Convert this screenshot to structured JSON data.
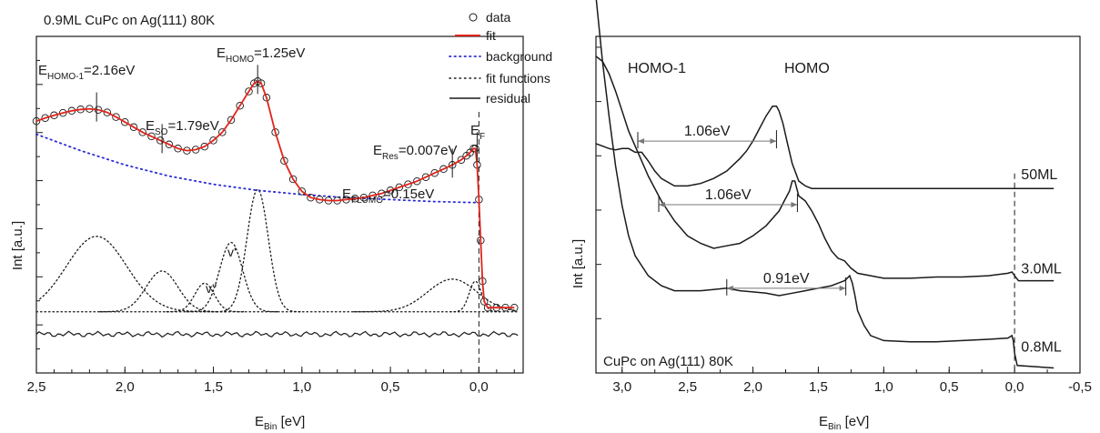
{
  "chart_data": [
    {
      "type": "line",
      "title": "0.9ML CuPc on Ag(111) 80K",
      "xlabel_main": "E",
      "xlabel_sub": "Bin",
      "xlabel_unit": " [eV]",
      "ylabel": "Int [a.u.]",
      "xlim": [
        2.5,
        -0.25
      ],
      "x_reversed": true,
      "x_ticks": [
        "2,5",
        "2,0",
        "1,5",
        "1,0",
        "0,5",
        "0,0"
      ],
      "x_tick_values": [
        2.5,
        2.0,
        1.5,
        1.0,
        0.5,
        0.0
      ],
      "legend_position": "top-right",
      "legend": [
        {
          "label": "data",
          "style": "circle",
          "color": "#1a1a1a"
        },
        {
          "label": "fit",
          "style": "solid",
          "color": "#e0241b"
        },
        {
          "label": "background",
          "style": "dot",
          "color": "#2b2bd6"
        },
        {
          "label": "fit functions",
          "style": "dot",
          "color": "#1a1a1a"
        },
        {
          "label": "residual",
          "style": "solid",
          "color": "#1a1a1a"
        }
      ],
      "annotations": [
        {
          "main": "E",
          "sub": "HOMO-1",
          "text": "=2.16eV",
          "x": 2.16
        },
        {
          "main": "E",
          "sub": "SO",
          "text": "=1.79eV",
          "x": 1.79
        },
        {
          "main": "E",
          "sub": "HOMO",
          "text": "=1.25eV",
          "x": 1.25
        },
        {
          "main": "E",
          "sub": "Res",
          "text": "=0.007eV",
          "x": 0.007
        },
        {
          "main": "E",
          "sub": "F",
          "text": "",
          "x": 0.0
        },
        {
          "main": "E",
          "sub": "FLUMO",
          "text": "=0.15eV",
          "x": 0.15
        }
      ],
      "peak_labels": [
        {
          "text": "v'",
          "x": 1.4
        },
        {
          "text": "v''",
          "x": 1.55
        }
      ],
      "series": [
        {
          "name": "fit",
          "x": [
            2.5,
            2.45,
            2.4,
            2.35,
            2.3,
            2.25,
            2.2,
            2.15,
            2.1,
            2.05,
            2.0,
            1.95,
            1.9,
            1.85,
            1.8,
            1.75,
            1.7,
            1.65,
            1.6,
            1.55,
            1.5,
            1.45,
            1.4,
            1.35,
            1.3,
            1.27,
            1.25,
            1.23,
            1.2,
            1.15,
            1.1,
            1.05,
            1.0,
            0.95,
            0.9,
            0.85,
            0.8,
            0.75,
            0.7,
            0.65,
            0.6,
            0.55,
            0.5,
            0.45,
            0.4,
            0.35,
            0.3,
            0.25,
            0.2,
            0.15,
            0.1,
            0.07,
            0.05,
            0.03,
            0.02,
            0.01,
            0.0,
            -0.01,
            -0.02,
            -0.03,
            -0.05,
            -0.1,
            -0.15,
            -0.2
          ],
          "y": [
            0.935,
            0.95,
            0.963,
            0.975,
            0.985,
            0.992,
            0.995,
            0.99,
            0.977,
            0.955,
            0.93,
            0.905,
            0.88,
            0.86,
            0.84,
            0.82,
            0.8,
            0.79,
            0.795,
            0.81,
            0.84,
            0.88,
            0.94,
            1.01,
            1.08,
            1.12,
            1.13,
            1.12,
            1.05,
            0.88,
            0.74,
            0.65,
            0.59,
            0.56,
            0.55,
            0.545,
            0.545,
            0.55,
            0.555,
            0.56,
            0.57,
            0.58,
            0.595,
            0.61,
            0.625,
            0.64,
            0.66,
            0.68,
            0.7,
            0.72,
            0.745,
            0.765,
            0.78,
            0.8,
            0.8,
            0.72,
            0.55,
            0.35,
            0.15,
            0.05,
            0.02,
            0.02,
            0.02,
            0.02
          ]
        },
        {
          "name": "data",
          "x": [
            2.5,
            2.45,
            2.4,
            2.35,
            2.3,
            2.25,
            2.2,
            2.15,
            2.1,
            2.05,
            2.0,
            1.95,
            1.9,
            1.85,
            1.8,
            1.75,
            1.7,
            1.65,
            1.6,
            1.55,
            1.5,
            1.45,
            1.4,
            1.35,
            1.3,
            1.27,
            1.25,
            1.23,
            1.2,
            1.15,
            1.1,
            1.05,
            1.0,
            0.95,
            0.9,
            0.85,
            0.8,
            0.75,
            0.7,
            0.65,
            0.6,
            0.55,
            0.5,
            0.45,
            0.4,
            0.35,
            0.3,
            0.25,
            0.2,
            0.15,
            0.1,
            0.07,
            0.05,
            0.03,
            0.02,
            0.01,
            0.0,
            -0.01,
            -0.02,
            -0.03,
            -0.05,
            -0.1,
            -0.15,
            -0.2
          ],
          "y": [
            0.935,
            0.95,
            0.963,
            0.975,
            0.985,
            0.992,
            0.995,
            0.99,
            0.977,
            0.955,
            0.93,
            0.905,
            0.88,
            0.86,
            0.84,
            0.82,
            0.8,
            0.79,
            0.795,
            0.81,
            0.84,
            0.88,
            0.94,
            1.01,
            1.08,
            1.12,
            1.13,
            1.12,
            1.05,
            0.88,
            0.74,
            0.65,
            0.59,
            0.56,
            0.55,
            0.545,
            0.545,
            0.55,
            0.555,
            0.56,
            0.57,
            0.58,
            0.595,
            0.61,
            0.625,
            0.64,
            0.66,
            0.68,
            0.7,
            0.72,
            0.745,
            0.765,
            0.78,
            0.8,
            0.8,
            0.72,
            0.55,
            0.35,
            0.15,
            0.05,
            0.02,
            0.02,
            0.02,
            0.02
          ]
        },
        {
          "name": "background",
          "x": [
            2.5,
            2.25,
            2.0,
            1.75,
            1.5,
            1.25,
            1.0,
            0.75,
            0.5,
            0.25,
            0.0
          ],
          "y": [
            0.87,
            0.79,
            0.72,
            0.665,
            0.625,
            0.595,
            0.575,
            0.56,
            0.55,
            0.54,
            0.535
          ]
        },
        {
          "name": "fit functions",
          "peaks": [
            {
              "center": 2.16,
              "height": 0.37,
              "width": 0.17
            },
            {
              "center": 1.79,
              "height": 0.2,
              "width": 0.09
            },
            {
              "center": 1.55,
              "height": 0.14,
              "width": 0.055
            },
            {
              "center": 1.4,
              "height": 0.34,
              "width": 0.065
            },
            {
              "center": 1.25,
              "height": 0.6,
              "width": 0.06
            },
            {
              "center": 0.15,
              "height": 0.16,
              "width": 0.14
            },
            {
              "center": 0.02,
              "height": 0.15,
              "width": 0.035
            }
          ]
        },
        {
          "name": "residual",
          "x": [
            2.5,
            0.0,
            -0.2
          ],
          "y": [
            -0.11,
            -0.11,
            -0.11
          ]
        }
      ]
    },
    {
      "type": "line",
      "title": "CuPc on Ag(111) 80K",
      "xlabel_main": "E",
      "xlabel_sub": "Bin",
      "xlabel_unit": " [eV]",
      "ylabel": "Int [a.u.]",
      "xlim": [
        3.2,
        -0.5
      ],
      "x_reversed": true,
      "x_ticks": [
        "3,0",
        "2,5",
        "2,0",
        "1,5",
        "1,0",
        "0,5",
        "0,0",
        "-0,5"
      ],
      "x_tick_values": [
        3.0,
        2.5,
        2.0,
        1.5,
        1.0,
        0.5,
        0.0,
        -0.5
      ],
      "annotations": [
        {
          "text": "HOMO-1",
          "x": 2.85
        },
        {
          "text": "HOMO",
          "x": 1.82
        },
        {
          "text": "1.06eV",
          "x_from": 2.88,
          "x_to": 1.82,
          "series": "50ML"
        },
        {
          "text": "1.06eV",
          "x_from": 2.72,
          "x_to": 1.66,
          "series": "3.0ML"
        },
        {
          "text": "0.91eV",
          "x_from": 2.2,
          "x_to": 1.29,
          "series": "0.8ML"
        }
      ],
      "series": [
        {
          "name": "50ML",
          "x": [
            3.2,
            3.15,
            3.1,
            3.05,
            3.0,
            2.95,
            2.9,
            2.85,
            2.8,
            2.75,
            2.7,
            2.6,
            2.5,
            2.4,
            2.3,
            2.2,
            2.1,
            2.05,
            2.0,
            1.95,
            1.9,
            1.85,
            1.82,
            1.8,
            1.77,
            1.74,
            1.7,
            1.65,
            1.6,
            1.55,
            1.5,
            1.4,
            1.2,
            1.0,
            0.5,
            0.0,
            -0.3
          ],
          "y": [
            0.87,
            0.86,
            0.85,
            0.845,
            0.85,
            0.85,
            0.835,
            0.835,
            0.8,
            0.76,
            0.73,
            0.7,
            0.7,
            0.71,
            0.73,
            0.76,
            0.81,
            0.84,
            0.88,
            0.93,
            0.98,
            1.02,
            1.02,
            1.0,
            0.95,
            0.88,
            0.79,
            0.72,
            0.7,
            0.69,
            0.69,
            0.69,
            0.69,
            0.69,
            0.69,
            0.69,
            0.69
          ]
        },
        {
          "name": "3.0ML",
          "x": [
            3.2,
            3.15,
            3.1,
            3.05,
            3.0,
            2.95,
            2.9,
            2.8,
            2.7,
            2.6,
            2.5,
            2.4,
            2.3,
            2.2,
            2.1,
            2.0,
            1.9,
            1.85,
            1.8,
            1.76,
            1.72,
            1.7,
            1.68,
            1.65,
            1.6,
            1.55,
            1.5,
            1.45,
            1.4,
            1.35,
            1.3,
            1.25,
            1.2,
            1.1,
            1.0,
            0.8,
            0.6,
            0.4,
            0.2,
            0.05,
            0.02,
            0.0,
            -0.03,
            -0.3
          ],
          "y": [
            1.22,
            1.2,
            1.15,
            1.08,
            1.0,
            0.92,
            0.86,
            0.74,
            0.64,
            0.56,
            0.5,
            0.47,
            0.45,
            0.46,
            0.47,
            0.5,
            0.54,
            0.57,
            0.6,
            0.64,
            0.68,
            0.72,
            0.72,
            0.66,
            0.64,
            0.6,
            0.55,
            0.49,
            0.44,
            0.41,
            0.4,
            0.37,
            0.35,
            0.34,
            0.33,
            0.33,
            0.335,
            0.335,
            0.34,
            0.35,
            0.355,
            0.34,
            0.32,
            0.32
          ]
        },
        {
          "name": "0.8ML",
          "x": [
            3.2,
            3.15,
            3.1,
            3.05,
            3.0,
            2.95,
            2.9,
            2.8,
            2.7,
            2.6,
            2.5,
            2.4,
            2.3,
            2.2,
            2.1,
            2.0,
            1.9,
            1.8,
            1.7,
            1.6,
            1.5,
            1.4,
            1.35,
            1.3,
            1.28,
            1.26,
            1.24,
            1.22,
            1.2,
            1.15,
            1.1,
            1.0,
            0.8,
            0.6,
            0.4,
            0.2,
            0.05,
            0.02,
            0.01,
            0.0,
            -0.02,
            -0.3
          ],
          "y": [
            1.46,
            1.2,
            0.98,
            0.78,
            0.62,
            0.5,
            0.42,
            0.34,
            0.3,
            0.28,
            0.28,
            0.28,
            0.285,
            0.29,
            0.28,
            0.275,
            0.27,
            0.26,
            0.27,
            0.28,
            0.29,
            0.3,
            0.31,
            0.32,
            0.33,
            0.34,
            0.31,
            0.26,
            0.2,
            0.14,
            0.1,
            0.08,
            0.075,
            0.075,
            0.08,
            0.085,
            0.09,
            0.1,
            0.08,
            0.03,
            -0.02,
            -0.03
          ]
        }
      ],
      "series_labels": [
        "50ML",
        "3.0ML",
        "0.8ML"
      ]
    }
  ]
}
